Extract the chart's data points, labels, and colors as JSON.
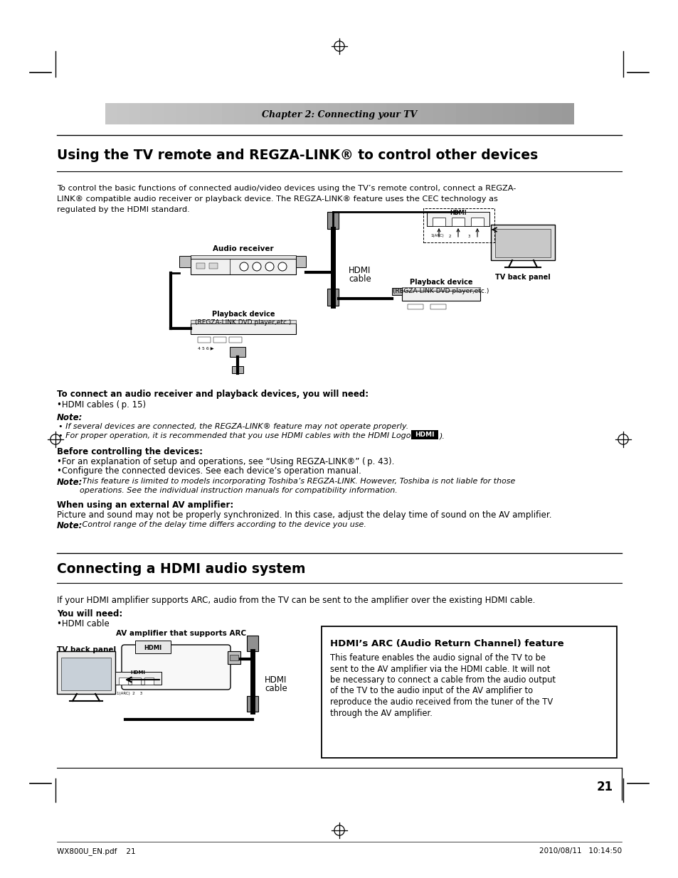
{
  "page_bg": "#ffffff",
  "header_bg_left": "#d0d0d0",
  "header_bg_right": "#a0a0a0",
  "header_text": "Chapter 2: Connecting your TV",
  "section1_title": "Using the TV remote and REGZA-LINK® to control other devices",
  "section1_body1": "To control the basic functions of connected audio/video devices using the TV’s remote control, connect a REGZA-",
  "section1_body2": "LINK® compatible audio receiver or playback device. The REGZA-LINK® feature uses the CEC technology as",
  "section1_body3": "regulated by the HDMI standard.",
  "need_title": "To connect an audio receiver and playback devices, you will need:",
  "need_bullet": "•HDMI cables ( p. 15)",
  "note_label": "Note:",
  "note1": " If several devices are connected, the REGZA-LINK® feature may not operate properly.",
  "note2": " For proper operation, it is recommended that you use HDMI cables with the HDMI Logo (",
  "note2_end": ").",
  "before_title": "Before controlling the devices:",
  "before1": "•For an explanation of setup and operations, see “Using REGZA-LINK®” ( p. 43).",
  "before2": "•Configure the connected devices. See each device’s operation manual.",
  "note3_label": "Note:",
  "note3": " This feature is limited to models incorporating Toshiba’s REGZA-LINK. However, Toshiba is not liable for those",
  "note3b": "operations. See the individual instruction manuals for compatibility information.",
  "when_title": "When using an external AV amplifier:",
  "when_body": "Picture and sound may not be properly synchronized. In this case, adjust the delay time of sound on the AV amplifier.",
  "note4_label": "Note:",
  "note4": " Control range of the delay time differs according to the device you use.",
  "section2_title": "Connecting a HDMI audio system",
  "section2_body": "If your HDMI amplifier supports ARC, audio from the TV can be sent to the amplifier over the existing HDMI cable.",
  "you_need": "You will need:",
  "you_bullet": "•HDMI cable",
  "arc_label": "AV amplifier that supports ARC",
  "arc_box_title": "HDMI’s ARC (Audio Return Channel) feature",
  "arc_box_body1": "This feature enables the audio signal of the TV to be",
  "arc_box_body2": "sent to the AV amplifier via the HDMI cable. It will not",
  "arc_box_body3": "be necessary to connect a cable from the audio output",
  "arc_box_body4": "of the TV to the audio input of the AV amplifier to",
  "arc_box_body5": "reproduce the audio received from the tuner of the TV",
  "arc_box_body6": "through the AV amplifier.",
  "page_num": "21",
  "footer_left": "WX800U_EN.pdf    21",
  "footer_right": "2010/08/11   10:14:50",
  "tv_back_panel_label1": "TV back panel",
  "audio_receiver_label": "Audio receiver",
  "playback_label1": "Playback device",
  "playback_sub1": "(REGZA-LINK DVD player,etc.)",
  "playback_label2": "Playback device",
  "playback_sub2": "(REGZA-LINK DVD player,etc.)",
  "hdmi_cable_label1": "HDMI",
  "hdmi_cable_label2": "cable",
  "tv_back_panel_label2": "TV back panel"
}
